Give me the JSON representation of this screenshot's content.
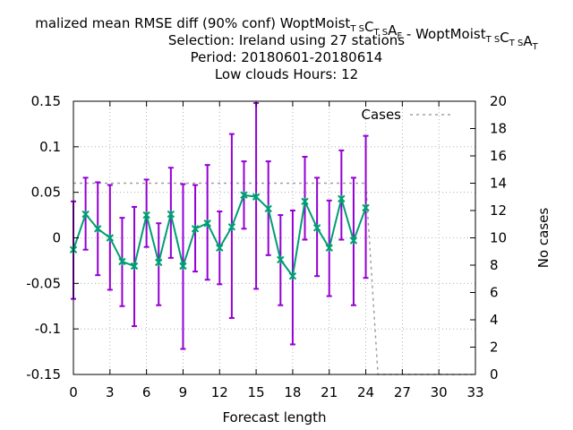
{
  "chart_data": {
    "type": "line",
    "title_lines": [
      {
        "parts": [
          {
            "t": "malized mean RMSE diff (90% conf) WoptMoist"
          },
          {
            "t": "T S",
            "sub": true
          },
          {
            "t": "C"
          },
          {
            "t": "T S",
            "sub": true
          },
          {
            "t": "A"
          },
          {
            "t": "F",
            "sub": true
          },
          {
            "t": " - WoptMoist"
          },
          {
            "t": "T S",
            "sub": true
          },
          {
            "t": "C"
          },
          {
            "t": "T S",
            "sub": true
          },
          {
            "t": "A"
          },
          {
            "t": "T",
            "sub": true
          }
        ]
      },
      {
        "parts": [
          {
            "t": "Selection: Ireland using    27 stations"
          }
        ]
      },
      {
        "parts": [
          {
            "t": "Period: 20180601-20180614"
          }
        ]
      },
      {
        "parts": [
          {
            "t": "Low clouds   Hours:  12"
          }
        ]
      }
    ],
    "xlabel": "Forecast length",
    "ylabel": "",
    "y2label": "No cases",
    "xlim": [
      0,
      33
    ],
    "ylim": [
      -0.15,
      0.15
    ],
    "y2lim": [
      0,
      20
    ],
    "xticks": [
      "0",
      "3",
      "6",
      "9",
      "12",
      "15",
      "18",
      "21",
      "24",
      "27",
      "30",
      "33"
    ],
    "yticks": [
      "-0.15",
      "-0.1",
      "-0.05",
      "0",
      "0.05",
      "0.1",
      "0.15"
    ],
    "y2ticks": [
      "0",
      "2",
      "4",
      "6",
      "8",
      "10",
      "12",
      "14",
      "16",
      "18",
      "20"
    ],
    "grid": true,
    "legend": {
      "position": "top-right",
      "entries": [
        "Cases"
      ]
    },
    "colors": {
      "line": "#009e73",
      "errorbar": "#9400d3",
      "cases": "#a0a0a0"
    },
    "series": [
      {
        "type": "errorbar-line",
        "x": [
          0,
          1,
          2,
          3,
          4,
          5,
          6,
          7,
          8,
          9,
          10,
          11,
          12,
          13,
          14,
          15,
          16,
          17,
          18,
          19,
          20,
          21,
          22,
          23,
          24
        ],
        "y": [
          -0.013,
          0.026,
          0.01,
          0.0,
          -0.026,
          -0.031,
          0.025,
          -0.027,
          0.026,
          -0.031,
          0.01,
          0.016,
          -0.011,
          0.012,
          0.047,
          0.045,
          0.032,
          -0.024,
          -0.042,
          0.04,
          0.011,
          -0.011,
          0.043,
          -0.003,
          0.033
        ],
        "ylow": [
          -0.067,
          -0.013,
          -0.041,
          -0.057,
          -0.075,
          -0.097,
          -0.01,
          -0.074,
          -0.022,
          -0.122,
          -0.037,
          -0.046,
          -0.051,
          -0.088,
          0.01,
          -0.056,
          -0.019,
          -0.074,
          -0.117,
          -0.002,
          -0.042,
          -0.064,
          -0.002,
          -0.074,
          -0.044
        ],
        "yhigh": [
          0.04,
          0.066,
          0.061,
          0.058,
          0.022,
          0.034,
          0.064,
          0.016,
          0.077,
          0.059,
          0.058,
          0.08,
          0.029,
          0.114,
          0.084,
          0.148,
          0.084,
          0.025,
          0.03,
          0.089,
          0.066,
          0.041,
          0.096,
          0.066,
          0.112
        ]
      },
      {
        "name": "Cases",
        "axis": "y2",
        "x": [
          0,
          1,
          2,
          3,
          4,
          5,
          6,
          7,
          8,
          9,
          10,
          11,
          12,
          13,
          14,
          15,
          16,
          17,
          18,
          19,
          20,
          21,
          22,
          23,
          24,
          25,
          26,
          27,
          28,
          29,
          30,
          31,
          32,
          33
        ],
        "values": [
          14,
          14,
          14,
          14,
          14,
          14,
          14,
          14,
          14,
          14,
          14,
          14,
          14,
          14,
          14,
          14,
          14,
          14,
          14,
          14,
          14,
          14,
          14,
          14,
          14,
          0,
          0,
          0,
          0,
          0,
          0,
          0,
          0,
          0
        ]
      }
    ]
  }
}
